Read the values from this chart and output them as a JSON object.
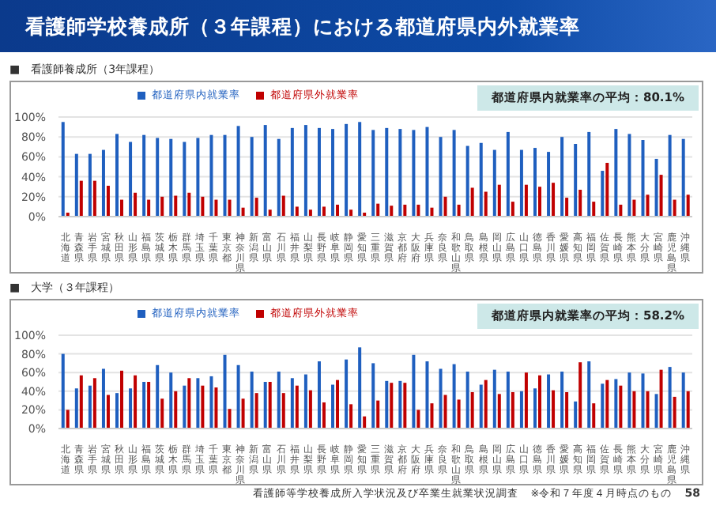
{
  "chart_data": [
    {
      "type": "bar",
      "title": "看護師学校養成所（３年課程）における都道府県内外就業率",
      "subtitle": "■　看護師養成所（3年課程）",
      "categories": [
        "北海道",
        "青森県",
        "岩手県",
        "宮城県",
        "秋田県",
        "山形県",
        "福島県",
        "茨城県",
        "栃木県",
        "群馬県",
        "埼玉県",
        "千葉県",
        "東京都",
        "神奈川県",
        "新潟県",
        "富山県",
        "石川県",
        "福井県",
        "山梨県",
        "長野県",
        "岐阜県",
        "静岡県",
        "愛知県",
        "三重県",
        "滋賀県",
        "京都府",
        "大阪府",
        "兵庫県",
        "奈良県",
        "和歌山県",
        "鳥取県",
        "島根県",
        "岡山県",
        "広島県",
        "山口県",
        "徳島県",
        "香川県",
        "愛媛県",
        "高知県",
        "福岡県",
        "佐賀県",
        "長崎県",
        "熊本県",
        "大分県",
        "宮崎県",
        "鹿児島県",
        "沖縄県"
      ],
      "series": [
        {
          "name": "都道府県内就業率",
          "color": "#1f5fbf",
          "values": [
            95,
            63,
            63,
            67,
            83,
            75,
            82,
            79,
            78,
            75,
            79,
            82,
            82,
            91,
            80,
            92,
            78,
            89,
            92,
            89,
            88,
            93,
            95,
            87,
            89,
            88,
            87,
            90,
            80,
            87,
            71,
            74,
            67,
            85,
            67,
            69,
            65,
            80,
            73,
            85,
            46,
            88,
            83,
            77,
            58,
            82,
            78
          ]
        },
        {
          "name": "都道府県外就業率",
          "color": "#c00000",
          "values": [
            4,
            36,
            36,
            31,
            17,
            24,
            17,
            20,
            21,
            24,
            20,
            17,
            17,
            9,
            19,
            7,
            21,
            10,
            7,
            10,
            12,
            7,
            4,
            13,
            11,
            12,
            12,
            9,
            20,
            12,
            29,
            25,
            32,
            15,
            32,
            30,
            34,
            19,
            27,
            15,
            54,
            12,
            17,
            22,
            42,
            17,
            22
          ]
        }
      ],
      "ylim": [
        0,
        100
      ],
      "yticks": [
        {
          "value": 0,
          "label": "0%"
        },
        {
          "value": 20,
          "label": "20%"
        },
        {
          "value": 40,
          "label": "40%"
        },
        {
          "value": 60,
          "label": "60%"
        },
        {
          "value": 80,
          "label": "80%"
        },
        {
          "value": 100,
          "label": "100%"
        }
      ],
      "grid": "y",
      "legend": "top",
      "annotations": [
        "都道府県内就業率の平均：80.1%"
      ]
    },
    {
      "type": "bar",
      "subtitle": "■　大学（３年課程）",
      "categories": [
        "北海道",
        "青森県",
        "岩手県",
        "宮城県",
        "秋田県",
        "山形県",
        "福島県",
        "茨城県",
        "栃木県",
        "群馬県",
        "埼玉県",
        "千葉県",
        "東京都",
        "神奈川県",
        "新潟県",
        "富山県",
        "石川県",
        "福井県",
        "山梨県",
        "長野県",
        "岐阜県",
        "静岡県",
        "愛知県",
        "三重県",
        "滋賀県",
        "京都府",
        "大阪府",
        "兵庫県",
        "奈良県",
        "和歌山県",
        "鳥取県",
        "島根県",
        "岡山県",
        "広島県",
        "山口県",
        "徳島県",
        "香川県",
        "愛媛県",
        "高知県",
        "福岡県",
        "佐賀県",
        "長崎県",
        "熊本県",
        "大分県",
        "宮崎県",
        "鹿児島県",
        "沖縄県"
      ],
      "series": [
        {
          "name": "都道府県内就業率",
          "color": "#1f5fbf",
          "values": [
            80,
            43,
            46,
            64,
            38,
            43,
            50,
            68,
            60,
            46,
            54,
            56,
            79,
            68,
            61,
            50,
            61,
            54,
            58,
            72,
            47,
            74,
            87,
            70,
            51,
            51,
            79,
            72,
            64,
            69,
            61,
            47,
            63,
            61,
            40,
            43,
            58,
            61,
            29,
            72,
            48,
            53,
            60,
            59,
            37,
            66,
            60
          ]
        },
        {
          "name": "都道府県外就業率",
          "color": "#c00000",
          "values": [
            20,
            57,
            54,
            36,
            62,
            57,
            50,
            32,
            40,
            54,
            46,
            44,
            21,
            32,
            38,
            50,
            38,
            46,
            41,
            28,
            52,
            26,
            13,
            30,
            49,
            49,
            20,
            27,
            36,
            31,
            39,
            52,
            37,
            39,
            60,
            57,
            41,
            39,
            71,
            27,
            52,
            46,
            40,
            40,
            63,
            34,
            40
          ]
        }
      ],
      "ylim": [
        0,
        100
      ],
      "yticks": [
        {
          "value": 0,
          "label": "0%"
        },
        {
          "value": 20,
          "label": "20%"
        },
        {
          "value": 40,
          "label": "40%"
        },
        {
          "value": 60,
          "label": "60%"
        },
        {
          "value": 80,
          "label": "80%"
        },
        {
          "value": 100,
          "label": "100%"
        }
      ],
      "grid": "y",
      "legend": "top",
      "annotations": [
        "都道府県内就業率の平均：58.2%",
        "看護師等学校養成所入学状況及び卒業生就業状況調査",
        "※令和７年度４月時点のもの",
        "58"
      ]
    }
  ]
}
